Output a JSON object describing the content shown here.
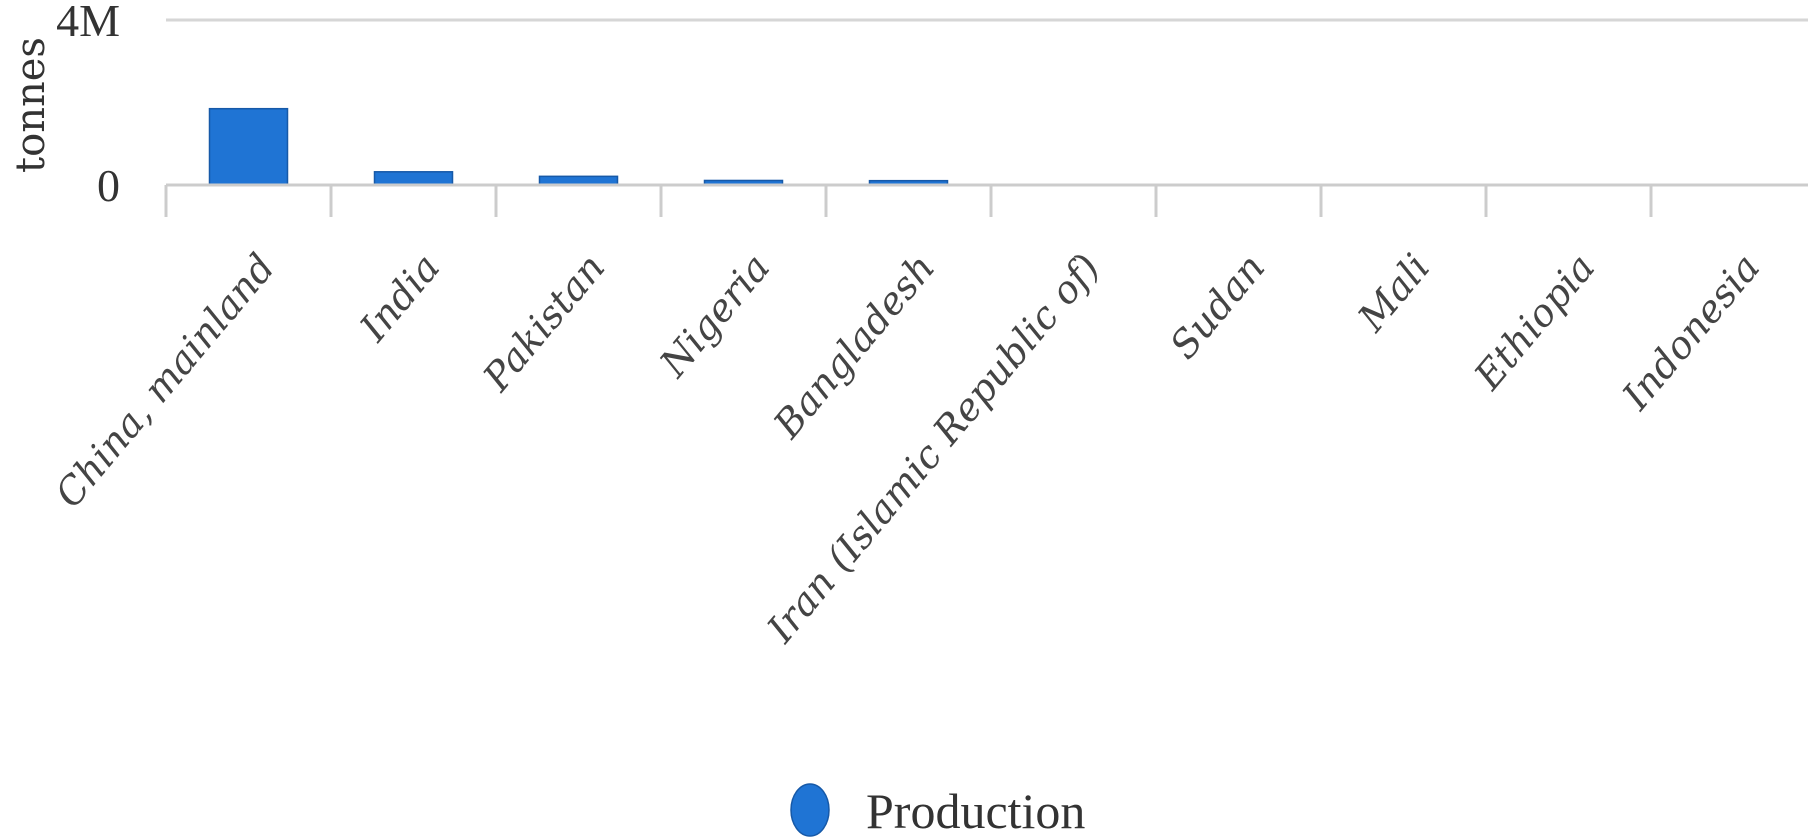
{
  "chart_data": {
    "type": "bar",
    "ylabel": "tonnes",
    "ylim": [
      0,
      4000000
    ],
    "y_ticks": [
      {
        "value": 0,
        "label": "0"
      },
      {
        "value": 4000000,
        "label": "4M"
      }
    ],
    "categories": [
      "China, mainland",
      "India",
      "Pakistan",
      "Nigeria",
      "Bangladesh",
      "Iran (Islamic Republic of)",
      "Sudan",
      "Mali",
      "Ethiopia",
      "Indonesia"
    ],
    "series": [
      {
        "name": "Production",
        "color": "#1f74d4",
        "values": [
          1850000,
          320000,
          210000,
          110000,
          105000,
          15000,
          8000,
          6000,
          5000,
          4000
        ]
      }
    ],
    "legend": {
      "position": "bottom-center",
      "label": "Production",
      "marker": "circle"
    },
    "grid": true
  }
}
